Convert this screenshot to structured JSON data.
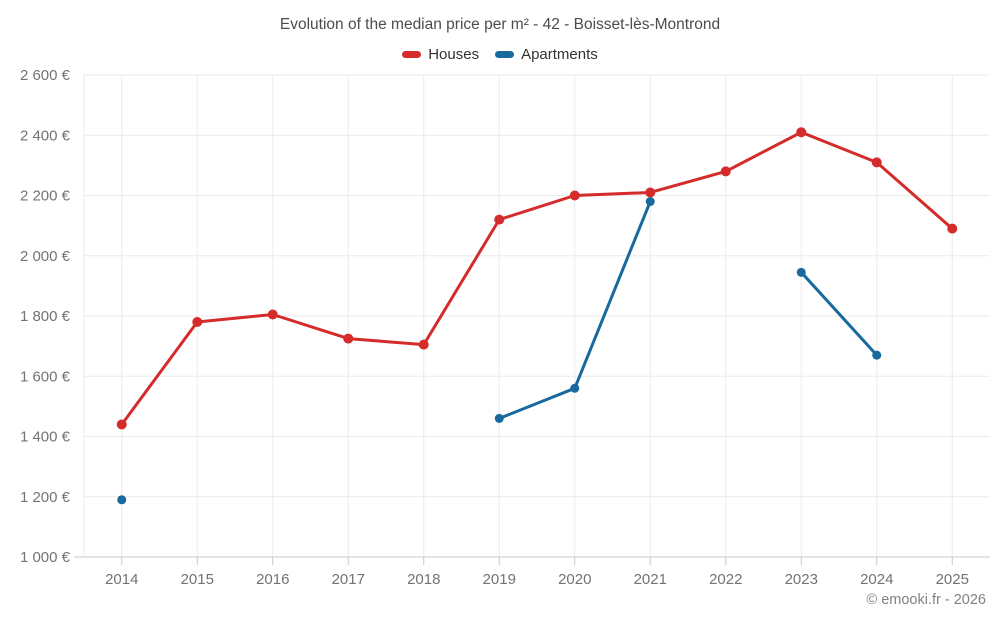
{
  "title": "Evolution of the median price per m² - 42 - Boisset-lès-Montrond",
  "footer": "© emooki.fr - 2026",
  "legend": {
    "items": [
      {
        "label": "Houses",
        "color": "#d52b2b"
      },
      {
        "label": "Apartments",
        "color": "#17699e"
      }
    ]
  },
  "chart_data": {
    "type": "line",
    "title": "Evolution of the median price per m² - 42 - Boisset-lès-Montrond",
    "categories": [
      "2014",
      "2015",
      "2016",
      "2017",
      "2018",
      "2019",
      "2020",
      "2021",
      "2022",
      "2023",
      "2024",
      "2025"
    ],
    "series": [
      {
        "name": "Houses",
        "color": "#d52b2b",
        "point_radius": 5,
        "values": [
          1440,
          1780,
          1805,
          1725,
          1705,
          2120,
          2200,
          2210,
          2280,
          2410,
          2310,
          2090
        ]
      },
      {
        "name": "Apartments",
        "color": "#17699e",
        "point_radius": 4.5,
        "values": [
          1190,
          null,
          null,
          null,
          null,
          1460,
          1560,
          2180,
          null,
          1945,
          1670,
          null
        ]
      }
    ],
    "xlabel": "",
    "ylabel": "",
    "ylim": [
      1000,
      2600
    ],
    "yticks": [
      1000,
      1200,
      1400,
      1600,
      1800,
      2000,
      2200,
      2400,
      2600
    ],
    "ytick_labels": [
      "1 000 €",
      "1 200 €",
      "1 400 €",
      "1 600 €",
      "1 800 €",
      "2 000 €",
      "2 200 €",
      "2 400 €",
      "2 600 €"
    ],
    "grid": true,
    "legend_position": "top",
    "unit": "€ per m²"
  }
}
